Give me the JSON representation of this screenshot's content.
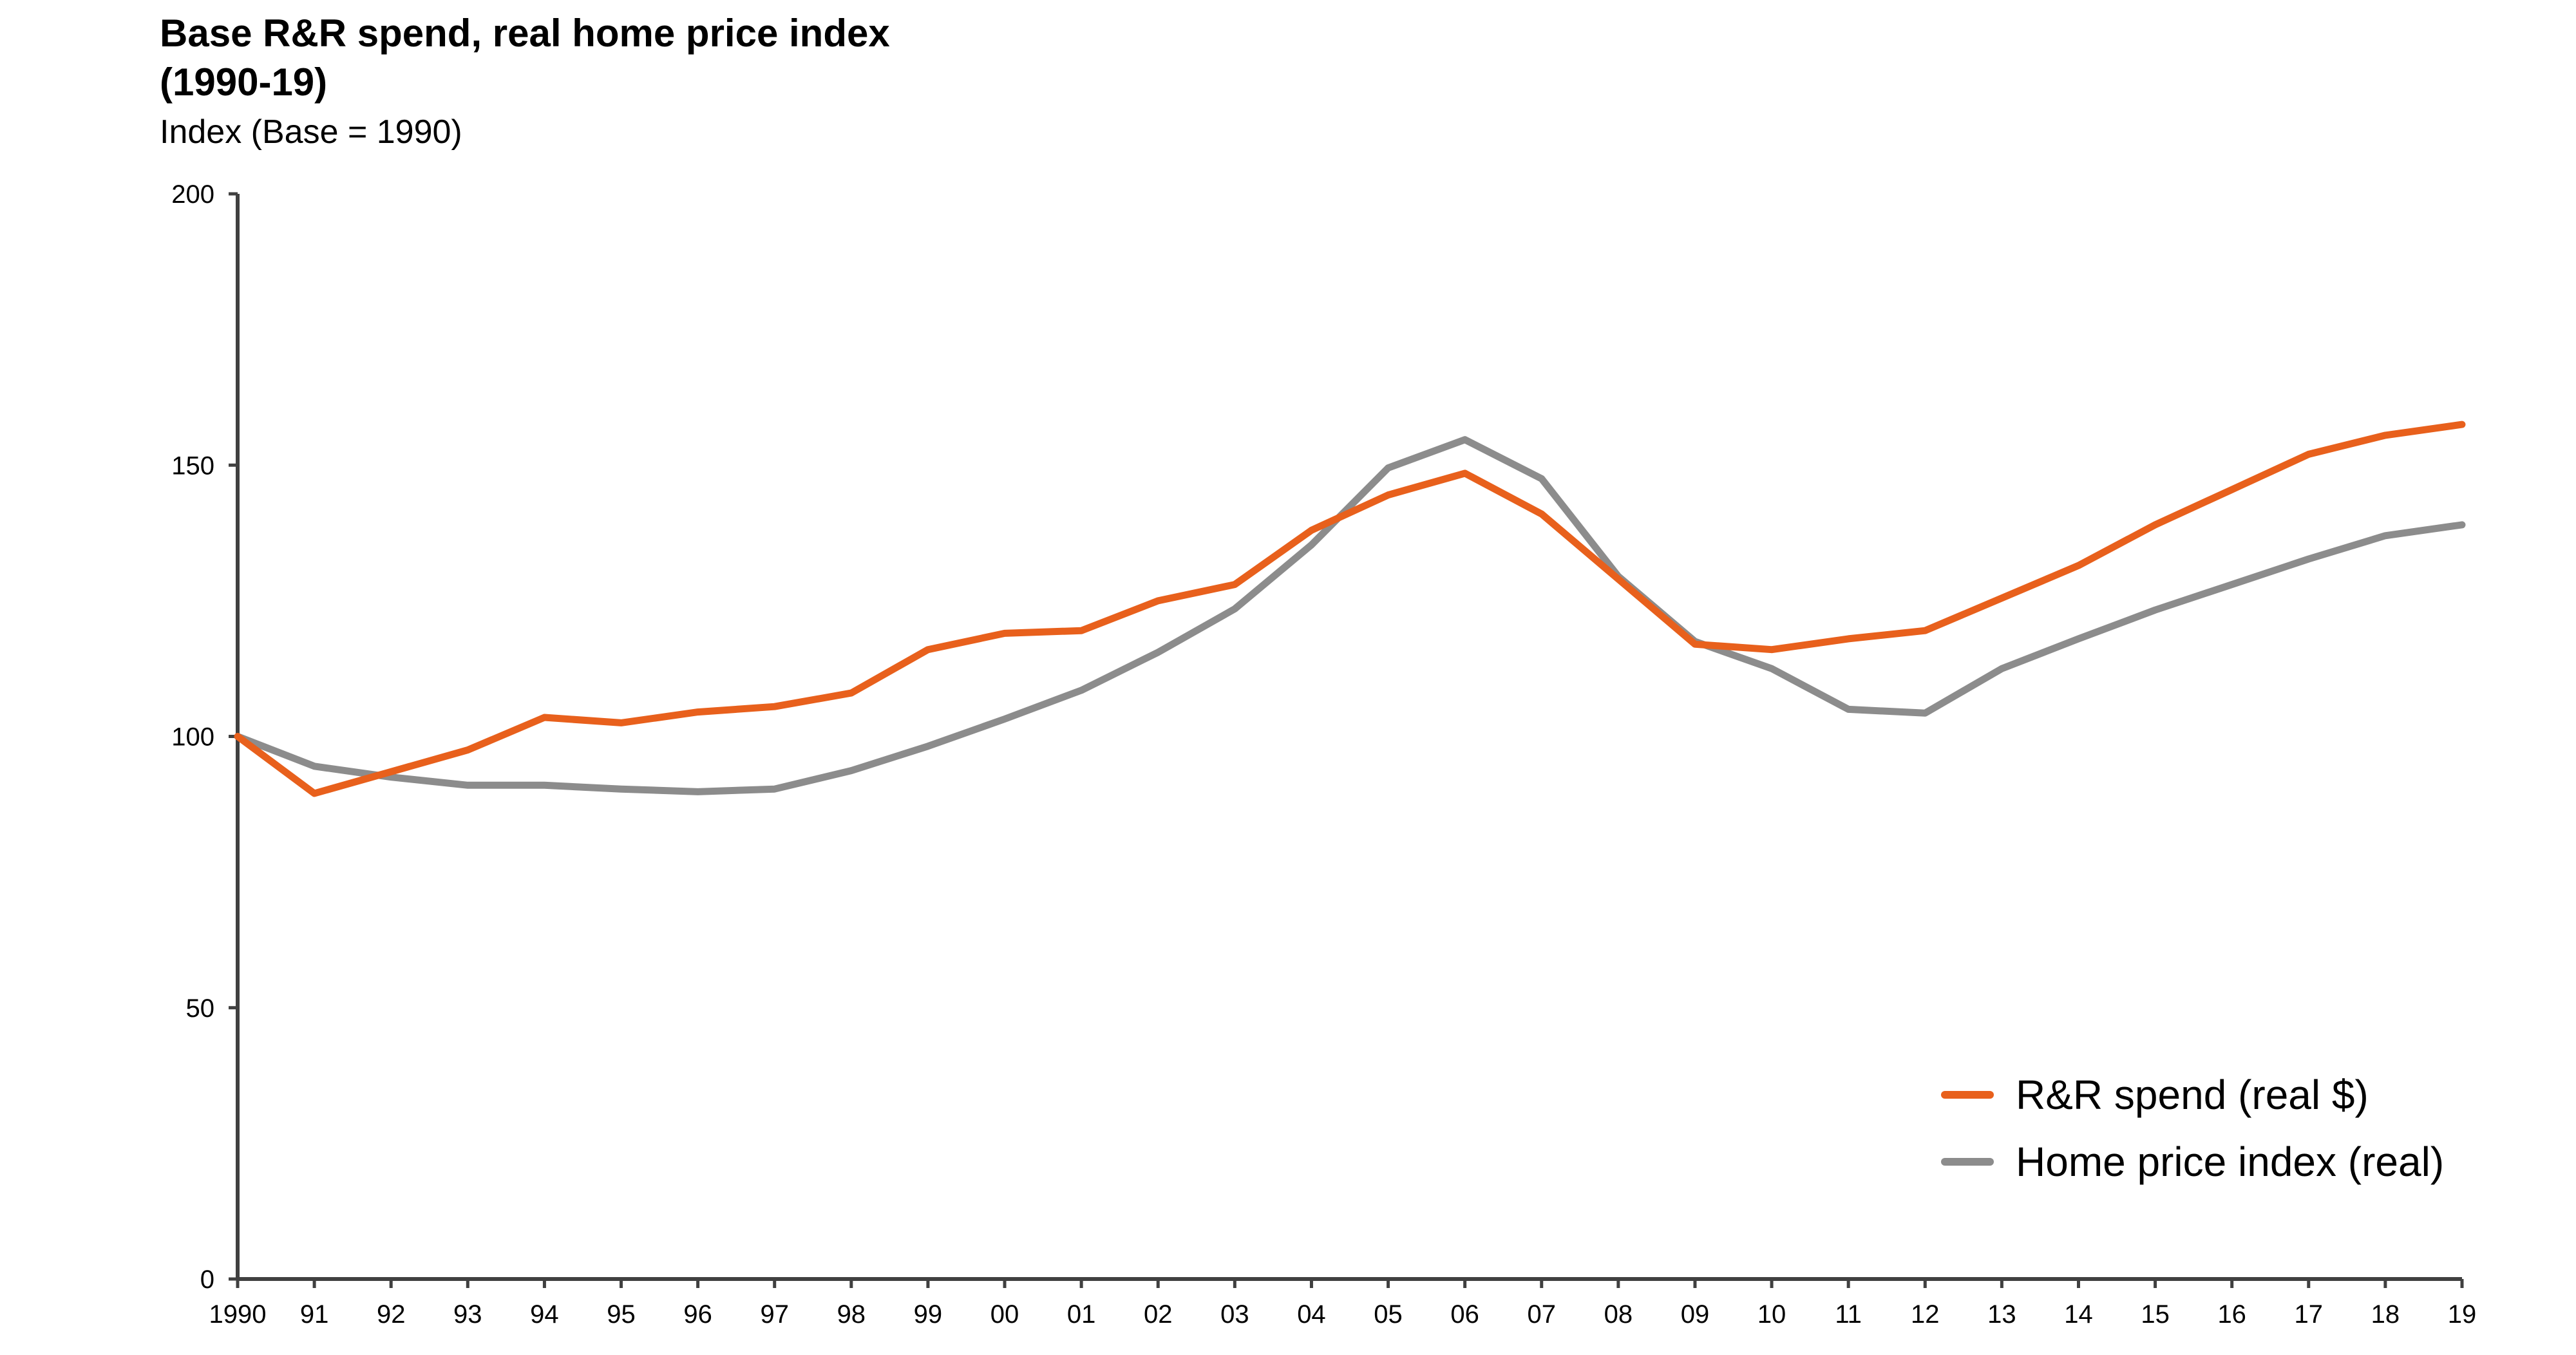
{
  "chart_data": {
    "type": "line",
    "title": "Base R&R spend, real home price index",
    "title_line2": "(1990-19)",
    "subtitle": "Index (Base = 1990)",
    "categories": [
      "1990",
      "91",
      "92",
      "93",
      "94",
      "95",
      "96",
      "97",
      "98",
      "99",
      "00",
      "01",
      "02",
      "03",
      "04",
      "05",
      "06",
      "07",
      "08",
      "09",
      "10",
      "11",
      "12",
      "13",
      "14",
      "15",
      "16",
      "17",
      "18",
      "19"
    ],
    "ylim": [
      0,
      200
    ],
    "yticks": [
      0,
      50,
      100,
      150,
      200
    ],
    "grid": false,
    "legend_position": "bottom-right",
    "series": [
      {
        "name": "R&R spend (real $)",
        "color": "#E8601C",
        "values": [
          100,
          89.5,
          93.5,
          97.5,
          103.5,
          102.5,
          104.5,
          105.5,
          108,
          116,
          119,
          119.5,
          125,
          128,
          138,
          144.5,
          148.5,
          141,
          129,
          117,
          116,
          118,
          119.5,
          125.5,
          131.5,
          139,
          145.5,
          152,
          155.5,
          157.5
        ]
      },
      {
        "name": "Home price index (real)",
        "color": "#8C8C8C",
        "values": [
          100,
          94.5,
          92.5,
          91,
          91,
          90.3,
          89.8,
          90.3,
          93.7,
          98.2,
          103.2,
          108.5,
          115.5,
          123.5,
          135.3,
          149.5,
          154.7,
          147.5,
          129.5,
          117.5,
          112.5,
          105,
          104.3,
          112.5,
          118,
          123.3,
          128,
          132.7,
          137,
          139
        ]
      }
    ]
  }
}
